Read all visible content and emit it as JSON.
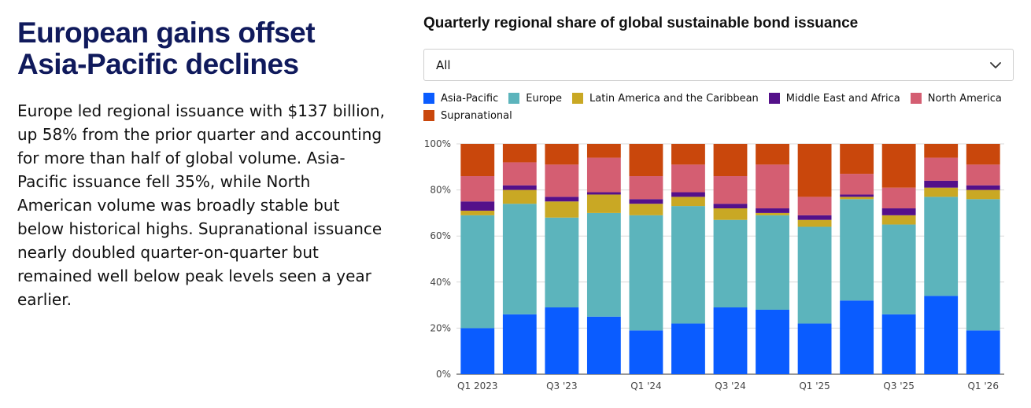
{
  "headline": "European gains offset Asia-Pacific declines",
  "body": "Europe led regional issuance with $137 billion, up 58% from the prior quarter and accounting for more than half of global volume. Asia-Pacific issuance fell 35%, while North American volume was broadly stable but below historical highs. Supranational issuance nearly doubled quarter-on-quarter but remained well below peak levels seen a year earlier.",
  "dropdown": {
    "value": "All",
    "icon": "chevron-down-icon"
  },
  "chart_data": {
    "type": "bar",
    "stacked": true,
    "title": "Quarterly regional share of global sustainable bond issuance",
    "xlabel": "",
    "ylabel": "",
    "ylim": [
      0,
      100
    ],
    "y_ticks": [
      0,
      20,
      40,
      60,
      80,
      100
    ],
    "y_tick_labels": [
      "0%",
      "20%",
      "40%",
      "60%",
      "80%",
      "100%"
    ],
    "x_tick_labels": [
      "Q1 2023",
      "",
      "Q3 '23",
      "",
      "Q1 '24",
      "",
      "Q3 '24",
      "",
      "Q1 '25",
      "",
      "Q3 '25",
      "",
      "Q1 '26"
    ],
    "categories": [
      "Q1 2023",
      "Q2 2023",
      "Q3 2023",
      "Q4 2023",
      "Q1 2024",
      "Q2 2024",
      "Q3 2024",
      "Q4 2024",
      "Q1 2025",
      "Q2 2025",
      "Q3 2025",
      "Q4 2025",
      "Q1 2026"
    ],
    "grid": true,
    "legend_position": "top",
    "series": [
      {
        "name": "Asia-Pacific",
        "color": "#0a5cff",
        "values": [
          20,
          26,
          29,
          25,
          19,
          22,
          29,
          28,
          22,
          32,
          26,
          34,
          19
        ]
      },
      {
        "name": "Europe",
        "color": "#5cb4bc",
        "values": [
          49,
          48,
          39,
          45,
          50,
          51,
          38,
          41,
          42,
          44,
          39,
          43,
          57
        ]
      },
      {
        "name": "Latin America and the Caribbean",
        "color": "#c9a824",
        "values": [
          2,
          6,
          7,
          8,
          5,
          4,
          5,
          1,
          3,
          1,
          4,
          4,
          4
        ]
      },
      {
        "name": "Middle East and Africa",
        "color": "#54108a",
        "values": [
          4,
          2,
          2,
          1,
          2,
          2,
          2,
          2,
          2,
          1,
          3,
          3,
          2
        ]
      },
      {
        "name": "North America",
        "color": "#d45e72",
        "values": [
          11,
          10,
          14,
          15,
          10,
          12,
          12,
          19,
          8,
          9,
          9,
          10,
          9
        ]
      },
      {
        "name": "Supranational",
        "color": "#c9470c",
        "values": [
          14,
          8,
          9,
          6,
          14,
          9,
          14,
          9,
          23,
          13,
          19,
          6,
          9
        ]
      }
    ]
  }
}
